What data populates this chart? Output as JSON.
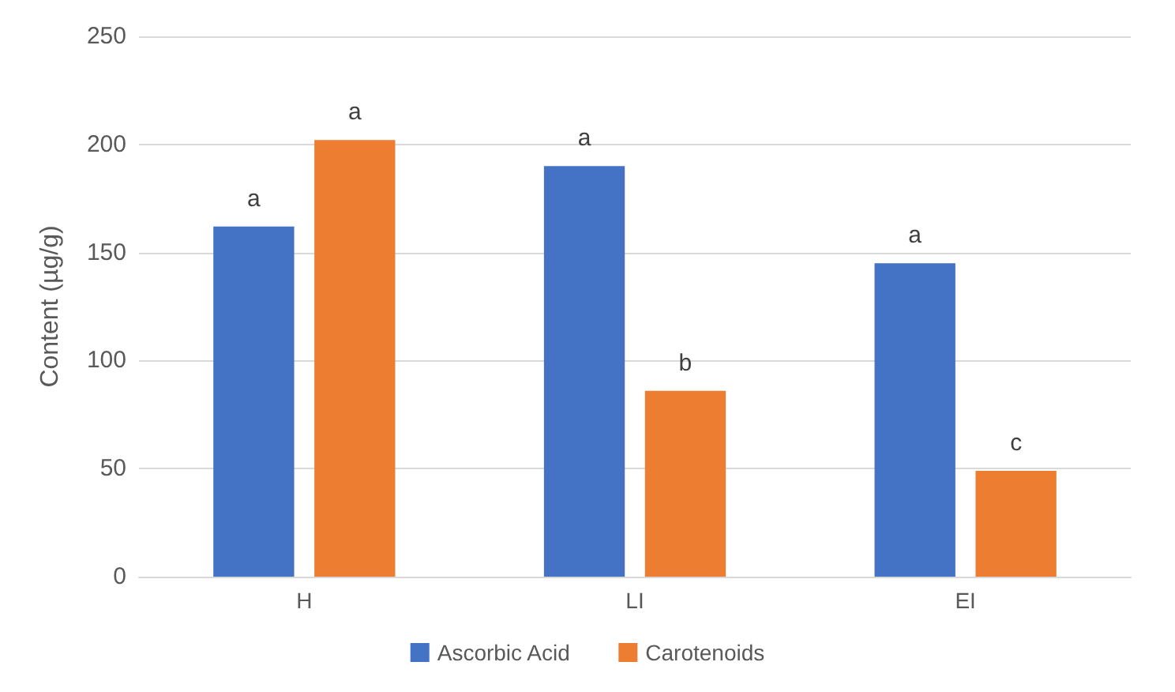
{
  "chart_data": {
    "type": "bar",
    "ylabel": "Content (µg/g)",
    "categories": [
      "H",
      "LI",
      "EI"
    ],
    "series": [
      {
        "name": "Ascorbic Acid",
        "color": "#4472c4",
        "values": [
          162,
          190,
          145
        ],
        "value_labels": [
          "a",
          "a",
          "a"
        ]
      },
      {
        "name": "Carotenoids",
        "color": "#ed7d31",
        "values": [
          202,
          86,
          49
        ],
        "value_labels": [
          "a",
          "b",
          "c"
        ]
      }
    ],
    "ylim": [
      0,
      250
    ],
    "yticks": [
      0,
      50,
      100,
      150,
      200,
      250
    ],
    "grid": "y",
    "legend": "bottom"
  }
}
